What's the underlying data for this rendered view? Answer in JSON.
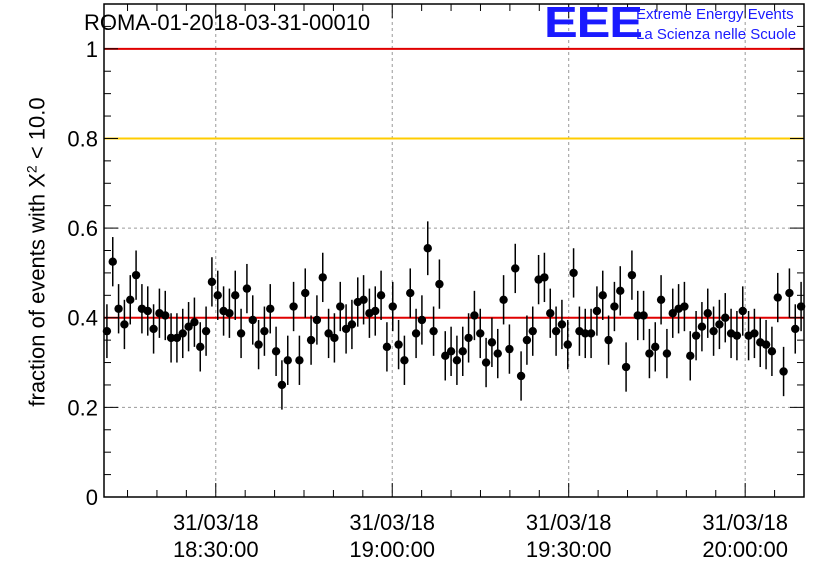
{
  "title": "ROMA-01-2018-03-31-00010",
  "logo": {
    "mark": "EEE",
    "line1": "Extreme Energy Events",
    "line2": "La Scienza nelle Scuole",
    "color": "#1a1aff"
  },
  "chart_data": {
    "type": "scatter",
    "ylabel_prefix": "fraction of events with X",
    "ylabel_sup": "2",
    "ylabel_suffix": " < 10.0",
    "xlabel": "",
    "ylim": [
      0,
      1.1
    ],
    "y_ticks": [
      "0",
      "0.2",
      "0.4",
      "0.6",
      "0.8",
      "1"
    ],
    "x_ticks": [
      {
        "time": "18:30",
        "date_label": "31/03/18",
        "time_label": "18:30:00"
      },
      {
        "time": "19:00",
        "date_label": "31/03/18",
        "time_label": "19:00:00"
      },
      {
        "time": "19:30",
        "date_label": "31/03/18",
        "time_label": "19:30:00"
      },
      {
        "time": "20:00",
        "date_label": "31/03/18",
        "time_label": "20:00:00"
      }
    ],
    "xlim": [
      "18:11",
      "20:10"
    ],
    "grid": true,
    "reference_lines": [
      {
        "y": 1.0,
        "color": "#e00000"
      },
      {
        "y": 0.8,
        "color": "#ffcc00"
      },
      {
        "y": 0.4,
        "color": "#e00000"
      }
    ],
    "series": [
      {
        "marker_color": "#000000",
        "values": [
          0.37,
          0.525,
          0.42,
          0.385,
          0.44,
          0.495,
          0.42,
          0.415,
          0.375,
          0.41,
          0.405,
          0.355,
          0.355,
          0.365,
          0.38,
          0.39,
          0.335,
          0.37,
          0.48,
          0.45,
          0.415,
          0.41,
          0.45,
          0.365,
          0.465,
          0.395,
          0.34,
          0.37,
          0.42,
          0.325,
          0.25,
          0.305,
          0.425,
          0.305,
          0.455,
          0.35,
          0.395,
          0.49,
          0.365,
          0.355,
          0.425,
          0.375,
          0.385,
          0.435,
          0.44,
          0.41,
          0.415,
          0.45,
          0.335,
          0.425,
          0.34,
          0.305,
          0.455,
          0.365,
          0.395,
          0.555,
          0.37,
          0.475,
          0.315,
          0.325,
          0.305,
          0.325,
          0.355,
          0.405,
          0.365,
          0.3,
          0.345,
          0.32,
          0.44,
          0.33,
          0.51,
          0.27,
          0.35,
          0.37,
          0.485,
          0.49,
          0.41,
          0.37,
          0.385,
          0.34,
          0.5,
          0.37,
          0.365,
          0.365,
          0.415,
          0.45,
          0.35,
          0.425,
          0.46,
          0.29,
          0.495,
          0.405,
          0.405,
          0.32,
          0.335,
          0.44,
          0.32,
          0.41,
          0.42,
          0.425,
          0.315,
          0.36,
          0.38,
          0.41,
          0.37,
          0.385,
          0.4,
          0.365,
          0.36,
          0.415,
          0.36,
          0.365,
          0.345,
          0.34,
          0.325,
          0.445,
          0.28,
          0.455,
          0.375,
          0.425
        ],
        "errors": [
          0.06,
          0.055,
          0.055,
          0.055,
          0.055,
          0.055,
          0.055,
          0.055,
          0.055,
          0.055,
          0.055,
          0.055,
          0.055,
          0.055,
          0.055,
          0.055,
          0.055,
          0.055,
          0.055,
          0.055,
          0.055,
          0.055,
          0.055,
          0.055,
          0.055,
          0.055,
          0.055,
          0.055,
          0.055,
          0.055,
          0.055,
          0.055,
          0.055,
          0.055,
          0.055,
          0.055,
          0.055,
          0.055,
          0.055,
          0.055,
          0.055,
          0.055,
          0.055,
          0.055,
          0.055,
          0.055,
          0.055,
          0.055,
          0.055,
          0.055,
          0.055,
          0.055,
          0.055,
          0.055,
          0.055,
          0.06,
          0.055,
          0.055,
          0.055,
          0.055,
          0.055,
          0.055,
          0.055,
          0.055,
          0.055,
          0.055,
          0.055,
          0.055,
          0.055,
          0.055,
          0.055,
          0.055,
          0.055,
          0.055,
          0.055,
          0.055,
          0.055,
          0.055,
          0.055,
          0.055,
          0.055,
          0.055,
          0.055,
          0.055,
          0.055,
          0.055,
          0.055,
          0.055,
          0.055,
          0.055,
          0.055,
          0.055,
          0.055,
          0.055,
          0.055,
          0.055,
          0.055,
          0.055,
          0.055,
          0.055,
          0.055,
          0.055,
          0.055,
          0.055,
          0.055,
          0.055,
          0.055,
          0.055,
          0.055,
          0.055,
          0.055,
          0.055,
          0.055,
          0.055,
          0.055,
          0.055,
          0.055,
          0.055,
          0.055,
          0.055
        ]
      }
    ]
  }
}
